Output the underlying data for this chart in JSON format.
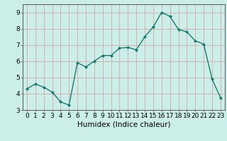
{
  "x": [
    0,
    1,
    2,
    3,
    4,
    5,
    6,
    7,
    8,
    9,
    10,
    11,
    12,
    13,
    14,
    15,
    16,
    17,
    18,
    19,
    20,
    21,
    22,
    23
  ],
  "y": [
    4.3,
    4.6,
    4.4,
    4.1,
    3.5,
    3.3,
    5.9,
    5.65,
    6.0,
    6.35,
    6.35,
    6.8,
    6.85,
    6.7,
    7.5,
    8.1,
    9.0,
    8.75,
    7.95,
    7.8,
    7.25,
    7.05,
    4.9,
    3.75
  ],
  "line_color": "#1a7a6e",
  "marker": "D",
  "marker_size": 2.0,
  "linewidth": 1.0,
  "bg_color": "#cceee8",
  "plot_bg_color": "#cceee8",
  "grid_major_color": "#b0b0b0",
  "grid_minor_color": "#d8d8d8",
  "xlabel": "Humidex (Indice chaleur)",
  "xlim": [
    -0.5,
    23.5
  ],
  "ylim": [
    3.0,
    9.5
  ],
  "yticks": [
    3,
    4,
    5,
    6,
    7,
    8,
    9
  ],
  "xticks": [
    0,
    1,
    2,
    3,
    4,
    5,
    6,
    7,
    8,
    9,
    10,
    11,
    12,
    13,
    14,
    15,
    16,
    17,
    18,
    19,
    20,
    21,
    22,
    23
  ],
  "tick_fontsize": 6.5,
  "xlabel_fontsize": 7.5
}
